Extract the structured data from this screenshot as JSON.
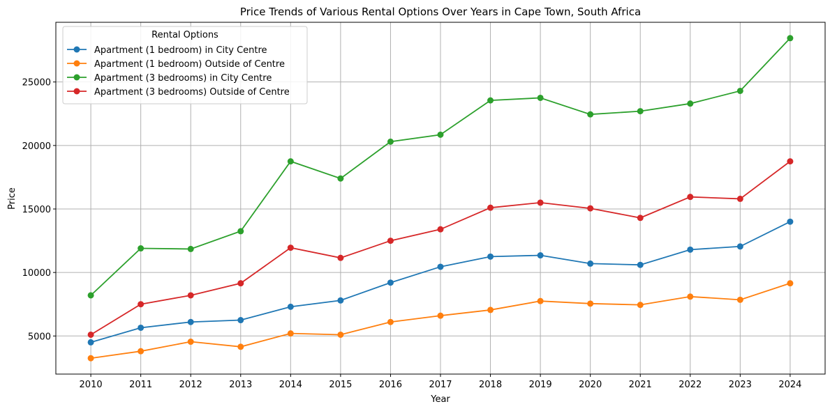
{
  "chart_data": {
    "type": "line",
    "title": "Price Trends of Various Rental Options Over Years in Cape Town, South Africa",
    "xlabel": "Year",
    "ylabel": "Price",
    "x": [
      2010,
      2011,
      2012,
      2013,
      2014,
      2015,
      2016,
      2017,
      2018,
      2019,
      2020,
      2021,
      2022,
      2023,
      2024
    ],
    "xlim": [
      2009.3,
      2024.7
    ],
    "ylim": [
      2000,
      29700
    ],
    "yticks": [
      5000,
      10000,
      15000,
      20000,
      25000
    ],
    "grid": true,
    "legend": {
      "title": "Rental Options",
      "placement": "top-left"
    },
    "series": [
      {
        "name": "Apartment (1 bedroom) in City Centre",
        "color": "#1f77b4",
        "values": [
          4500,
          5650,
          6100,
          6250,
          7300,
          7800,
          9200,
          10450,
          11250,
          11350,
          10700,
          10600,
          11800,
          12050,
          14000
        ]
      },
      {
        "name": "Apartment (1 bedroom) Outside of Centre",
        "color": "#ff7f0e",
        "values": [
          3250,
          3800,
          4550,
          4150,
          5200,
          5100,
          6100,
          6600,
          7050,
          7750,
          7550,
          7450,
          8100,
          7850,
          9150
        ]
      },
      {
        "name": "Apartment (3 bedrooms) in City Centre",
        "color": "#2ca02c",
        "values": [
          8200,
          11900,
          11850,
          13250,
          18750,
          17400,
          20300,
          20850,
          23550,
          23750,
          22450,
          22700,
          23300,
          24300,
          28450
        ]
      },
      {
        "name": "Apartment (3 bedrooms) Outside of Centre",
        "color": "#d62728",
        "values": [
          5100,
          7500,
          8200,
          9150,
          11950,
          11150,
          12500,
          13400,
          15100,
          15500,
          15050,
          14300,
          15950,
          15800,
          18750
        ]
      }
    ]
  }
}
